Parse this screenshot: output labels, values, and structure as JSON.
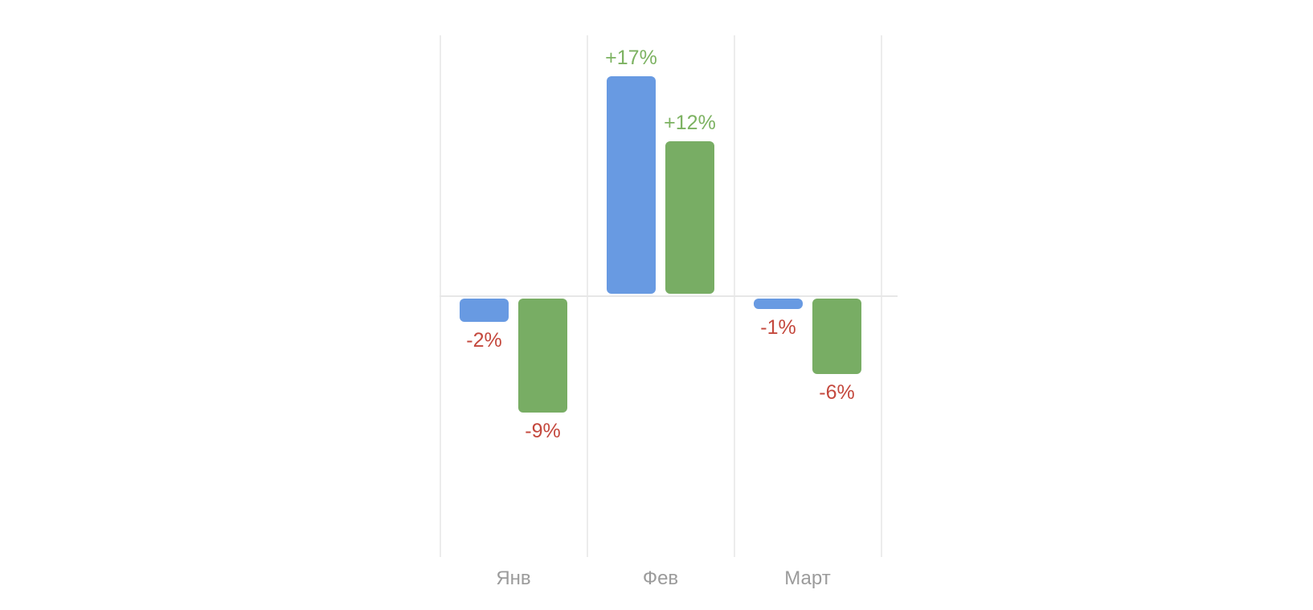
{
  "chart_data": {
    "type": "bar",
    "title": "",
    "xlabel": "",
    "ylabel": "",
    "categories": [
      "Янв",
      "Фев",
      "Март"
    ],
    "series": [
      {
        "name": "blue-series",
        "color": "#689ae2",
        "values": [
          -2,
          17,
          -1
        ],
        "labels": [
          "-2%",
          "+17%",
          "-1%"
        ]
      },
      {
        "name": "green-series",
        "color": "#78ad64",
        "values": [
          -9,
          12,
          -6
        ],
        "labels": [
          "-9%",
          "+12%",
          "-6%"
        ]
      }
    ],
    "ylim": [
      -20,
      20
    ],
    "legend": "none",
    "grid": "vertical-only",
    "label_colors": {
      "positive": "#7cb261",
      "negative": "#c4483d"
    },
    "axis_label_color": "#9b9b9b",
    "gridline_color": "#ececec",
    "zero_line_color": "#e7e7e7",
    "background": "#ffffff"
  }
}
